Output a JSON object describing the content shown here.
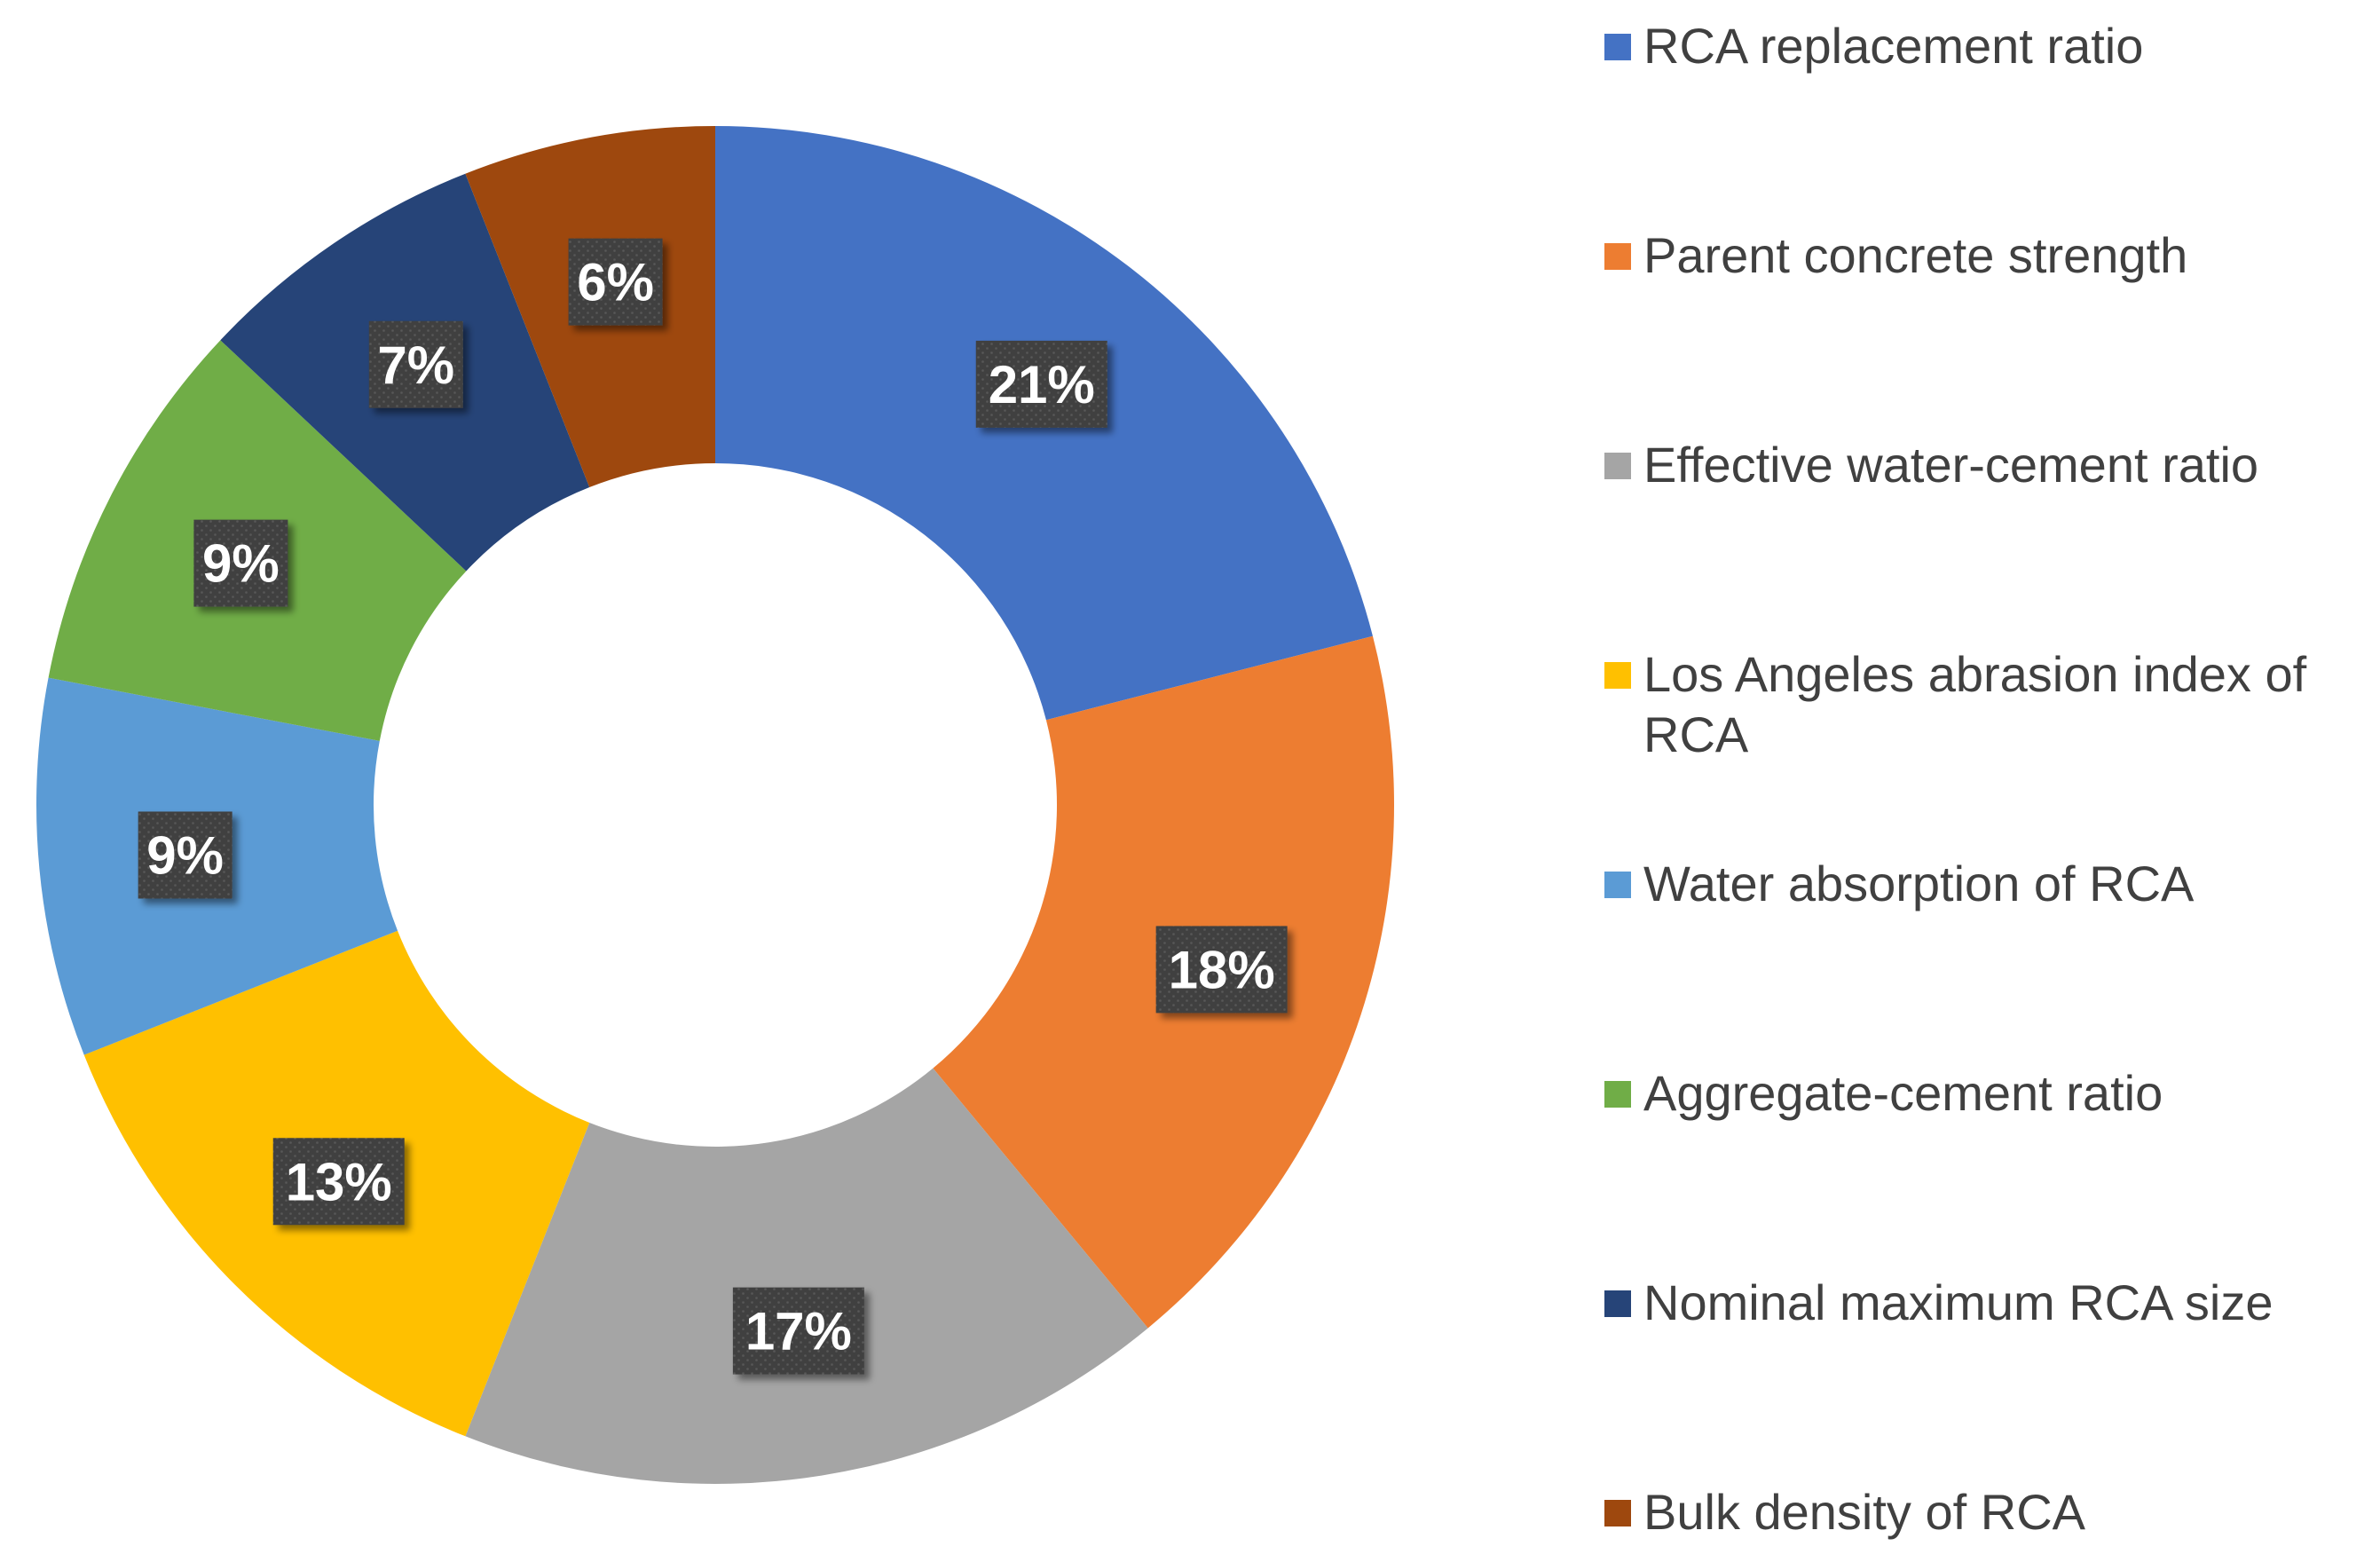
{
  "chart_data": {
    "type": "pie",
    "variant": "donut",
    "title": "",
    "slices": [
      {
        "label": "RCA replacement ratio",
        "value": 21,
        "display": "21%",
        "color": "#4472C4"
      },
      {
        "label": "Parent concrete strength",
        "value": 18,
        "display": "18%",
        "color": "#ED7D31"
      },
      {
        "label": "Effective water-cement ratio",
        "value": 17,
        "display": "17%",
        "color": "#A5A5A5"
      },
      {
        "label": "Los Angeles abrasion index of RCA",
        "value": 13,
        "display": "13%",
        "color": "#FFC000"
      },
      {
        "label": "Water absorption of RCA",
        "value": 9,
        "display": "9%",
        "color": "#5B9BD5"
      },
      {
        "label": "Aggregate-cement ratio",
        "value": 9,
        "display": "9%",
        "color": "#70AD47"
      },
      {
        "label": "Nominal maximum RCA size",
        "value": 7,
        "display": "7%",
        "color": "#264478"
      },
      {
        "label": "Bulk density of RCA",
        "value": 6,
        "display": "6%",
        "color": "#9E480E"
      }
    ],
    "legend_position": "right",
    "start_angle_deg": 0,
    "direction": "clockwise"
  }
}
